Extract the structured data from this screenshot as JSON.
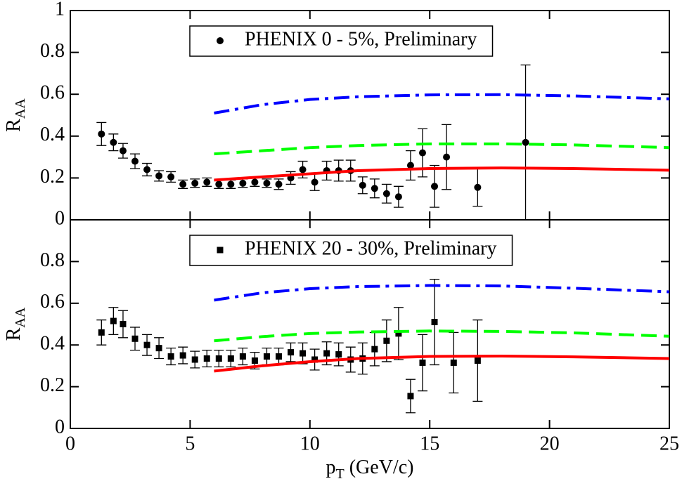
{
  "chart_data": [
    {
      "type": "scatter",
      "legend": "top",
      "ylim": [
        0,
        1
      ],
      "yticks": [
        0,
        0.2,
        0.4,
        0.6,
        0.8,
        1
      ],
      "xlim": [
        0,
        25
      ],
      "xticks": [
        0,
        5,
        10,
        15,
        20,
        25
      ],
      "y_label": {
        "main": "R",
        "sub": "AA"
      },
      "series": [
        {
          "name": "PHENIX 0 - 5%, Preliminary",
          "kind": "points",
          "marker": "circle",
          "color": "#000000",
          "x": [
            1.3,
            1.8,
            2.2,
            2.7,
            3.2,
            3.7,
            4.2,
            4.7,
            5.2,
            5.7,
            6.2,
            6.7,
            7.2,
            7.7,
            8.2,
            8.7,
            9.2,
            9.7,
            10.2,
            10.7,
            11.2,
            11.7,
            12.2,
            12.7,
            13.2,
            13.7,
            14.2,
            14.7,
            15.2,
            15.7,
            17.0,
            19.0
          ],
          "values": [
            0.41,
            0.37,
            0.33,
            0.28,
            0.24,
            0.21,
            0.205,
            0.17,
            0.175,
            0.18,
            0.17,
            0.17,
            0.175,
            0.18,
            0.175,
            0.17,
            0.2,
            0.24,
            0.18,
            0.235,
            0.235,
            0.235,
            0.165,
            0.15,
            0.125,
            0.11,
            0.26,
            0.32,
            0.16,
            0.3,
            0.155,
            0.37
          ],
          "errors": [
            0.055,
            0.04,
            0.035,
            0.035,
            0.03,
            0.025,
            0.025,
            0.02,
            0.02,
            0.02,
            0.02,
            0.02,
            0.02,
            0.02,
            0.02,
            0.025,
            0.03,
            0.04,
            0.04,
            0.045,
            0.05,
            0.05,
            0.04,
            0.045,
            0.045,
            0.05,
            0.07,
            0.115,
            0.1,
            0.155,
            0.09,
            0.37
          ]
        },
        {
          "kind": "line",
          "style": "solid",
          "color": "#ff0000",
          "x": [
            6,
            8,
            10,
            12,
            15,
            18,
            21,
            25
          ],
          "values": [
            0.19,
            0.205,
            0.22,
            0.235,
            0.245,
            0.248,
            0.245,
            0.237
          ]
        },
        {
          "kind": "line",
          "style": "dashed",
          "color": "#00ff00",
          "x": [
            6,
            8,
            10,
            12,
            15,
            18,
            21,
            25
          ],
          "values": [
            0.315,
            0.33,
            0.345,
            0.355,
            0.363,
            0.363,
            0.358,
            0.345
          ]
        },
        {
          "kind": "line",
          "style": "dashdot",
          "color": "#0000ff",
          "x": [
            6,
            8,
            10,
            12,
            15,
            18,
            21,
            25
          ],
          "values": [
            0.51,
            0.55,
            0.575,
            0.588,
            0.597,
            0.598,
            0.592,
            0.578
          ]
        }
      ]
    },
    {
      "type": "scatter",
      "legend": "top",
      "ylim": [
        0,
        1
      ],
      "yticks": [
        0,
        0.2,
        0.4,
        0.6,
        0.8
      ],
      "xlim": [
        0,
        25
      ],
      "xticks": [
        0,
        5,
        10,
        15,
        20,
        25
      ],
      "y_label": {
        "main": "R",
        "sub": "AA"
      },
      "x_label": {
        "main": "p",
        "sub": "T",
        "rest": " (GeV/c)"
      },
      "series": [
        {
          "name": "PHENIX 20 - 30%, Preliminary",
          "kind": "points",
          "marker": "square",
          "color": "#000000",
          "x": [
            1.3,
            1.8,
            2.2,
            2.7,
            3.2,
            3.7,
            4.2,
            4.7,
            5.2,
            5.7,
            6.2,
            6.7,
            7.2,
            7.7,
            8.2,
            8.7,
            9.2,
            9.7,
            10.2,
            10.7,
            11.2,
            11.7,
            12.2,
            12.7,
            13.2,
            13.7,
            14.2,
            14.7,
            15.2,
            16.0,
            17.0
          ],
          "values": [
            0.46,
            0.515,
            0.5,
            0.43,
            0.4,
            0.385,
            0.345,
            0.35,
            0.33,
            0.335,
            0.335,
            0.335,
            0.345,
            0.325,
            0.345,
            0.345,
            0.365,
            0.36,
            0.33,
            0.36,
            0.355,
            0.33,
            0.335,
            0.38,
            0.42,
            0.455,
            0.155,
            0.315,
            0.51,
            0.315,
            0.325
          ],
          "errors": [
            0.06,
            0.065,
            0.065,
            0.055,
            0.05,
            0.05,
            0.04,
            0.04,
            0.04,
            0.04,
            0.04,
            0.04,
            0.04,
            0.04,
            0.04,
            0.04,
            0.045,
            0.05,
            0.05,
            0.055,
            0.055,
            0.06,
            0.075,
            0.08,
            0.1,
            0.125,
            0.08,
            0.135,
            0.205,
            0.145,
            0.195
          ]
        },
        {
          "kind": "line",
          "style": "solid",
          "color": "#ff0000",
          "x": [
            6,
            8,
            10,
            12,
            15,
            18,
            21,
            25
          ],
          "values": [
            0.275,
            0.3,
            0.32,
            0.335,
            0.345,
            0.347,
            0.343,
            0.335
          ]
        },
        {
          "kind": "line",
          "style": "dashed",
          "color": "#00ff00",
          "x": [
            6,
            8,
            10,
            12,
            15,
            18,
            21,
            25
          ],
          "values": [
            0.42,
            0.44,
            0.455,
            0.462,
            0.467,
            0.465,
            0.458,
            0.442
          ]
        },
        {
          "kind": "line",
          "style": "dashdot",
          "color": "#0000ff",
          "x": [
            6,
            8,
            10,
            12,
            15,
            18,
            21,
            25
          ],
          "values": [
            0.615,
            0.65,
            0.67,
            0.68,
            0.685,
            0.683,
            0.672,
            0.655
          ]
        }
      ]
    }
  ]
}
